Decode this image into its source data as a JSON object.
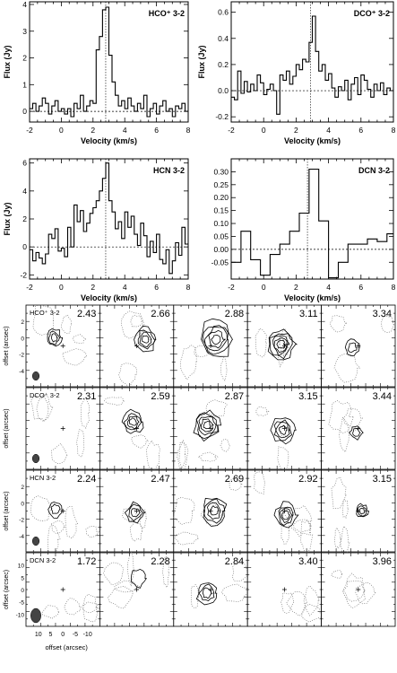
{
  "chart_data": {
    "spectra": [
      {
        "type": "line",
        "title": "HCO⁺ 3-2",
        "xlabel": "Velocity (km/s)",
        "ylabel": "Flux (Jy)",
        "xlim": [
          -2,
          8
        ],
        "ylim": [
          -0.4,
          4.1
        ],
        "xticks": [
          -2,
          0,
          2,
          4,
          6,
          8
        ],
        "yticks": [
          0,
          1,
          2,
          3,
          4
        ],
        "ytick_labels": [
          "0",
          "1",
          "2",
          "3",
          "4"
        ],
        "center_velocity": 2.8,
        "x": [
          -2.0,
          -1.8,
          -1.6,
          -1.4,
          -1.2,
          -1.0,
          -0.8,
          -0.6,
          -0.4,
          -0.2,
          0.0,
          0.2,
          0.4,
          0.6,
          0.8,
          1.0,
          1.2,
          1.4,
          1.6,
          1.8,
          2.0,
          2.2,
          2.4,
          2.6,
          2.8,
          3.0,
          3.2,
          3.4,
          3.6,
          3.8,
          4.0,
          4.2,
          4.4,
          4.6,
          4.8,
          5.0,
          5.2,
          5.4,
          5.6,
          5.8,
          6.0,
          6.2,
          6.4,
          6.6,
          6.8,
          7.0,
          7.2,
          7.4,
          7.6,
          7.8
        ],
        "y": [
          0.1,
          0.3,
          0.0,
          0.2,
          0.5,
          0.3,
          -0.1,
          0.2,
          0.4,
          0.0,
          0.1,
          -0.1,
          0.1,
          -0.2,
          0.3,
          0.1,
          0.6,
          0.0,
          0.2,
          0.4,
          0.3,
          2.3,
          2.8,
          3.8,
          3.9,
          2.1,
          1.1,
          0.6,
          0.2,
          0.4,
          0.1,
          0.5,
          0.2,
          0.0,
          0.3,
          0.1,
          0.6,
          -0.2,
          0.1,
          0.3,
          -0.1,
          0.2,
          0.4,
          0.0,
          0.1,
          -0.2,
          0.2,
          0.1,
          0.3,
          0.0
        ]
      },
      {
        "type": "line",
        "title": "DCO⁺ 3-2",
        "xlabel": "Velocity (km/s)",
        "ylabel": "Flux (Jy)",
        "xlim": [
          -2,
          8
        ],
        "ylim": [
          -0.24,
          0.68
        ],
        "xticks": [
          -2,
          0,
          2,
          4,
          6,
          8
        ],
        "yticks": [
          -0.2,
          0.0,
          0.2,
          0.4,
          0.6
        ],
        "ytick_labels": [
          "-0.2",
          "0.0",
          "0.2",
          "0.4",
          "0.6"
        ],
        "center_velocity": 2.9,
        "x": [
          -2.0,
          -1.8,
          -1.6,
          -1.4,
          -1.2,
          -1.0,
          -0.8,
          -0.6,
          -0.4,
          -0.2,
          0.0,
          0.2,
          0.4,
          0.6,
          0.8,
          1.0,
          1.2,
          1.4,
          1.6,
          1.8,
          2.0,
          2.2,
          2.4,
          2.6,
          2.8,
          3.0,
          3.2,
          3.4,
          3.6,
          3.8,
          4.0,
          4.2,
          4.4,
          4.6,
          4.8,
          5.0,
          5.2,
          5.4,
          5.6,
          5.8,
          6.0,
          6.2,
          6.4,
          6.6,
          6.8,
          7.0,
          7.2,
          7.4,
          7.6,
          7.8
        ],
        "y": [
          -0.05,
          -0.07,
          0.15,
          -0.02,
          0.07,
          -0.01,
          0.05,
          0.0,
          0.12,
          0.06,
          -0.03,
          0.01,
          0.05,
          0.0,
          -0.18,
          0.12,
          0.08,
          0.15,
          0.05,
          0.11,
          0.2,
          0.16,
          0.24,
          0.22,
          0.37,
          0.57,
          0.3,
          0.15,
          0.2,
          0.08,
          0.13,
          0.02,
          -0.05,
          0.03,
          0.0,
          0.08,
          -0.07,
          0.05,
          0.1,
          -0.03,
          0.12,
          0.08,
          0.01,
          -0.05,
          0.05,
          0.0,
          0.06,
          -0.03,
          0.02,
          0.0
        ]
      },
      {
        "type": "line",
        "title": "HCN 3-2",
        "xlabel": "Velocity (km/s)",
        "ylabel": "Flux (Jy)",
        "xlim": [
          -2,
          8
        ],
        "ylim": [
          -2.3,
          6.3
        ],
        "xticks": [
          -2,
          0,
          2,
          4,
          6,
          8
        ],
        "yticks": [
          -2,
          0,
          2,
          4,
          6
        ],
        "ytick_labels": [
          "-2",
          "0",
          "2",
          "4",
          "6"
        ],
        "center_velocity": 2.8,
        "x": [
          -2.0,
          -1.8,
          -1.6,
          -1.4,
          -1.2,
          -1.0,
          -0.8,
          -0.6,
          -0.4,
          -0.2,
          0.0,
          0.2,
          0.4,
          0.6,
          0.8,
          1.0,
          1.2,
          1.4,
          1.6,
          1.8,
          2.0,
          2.2,
          2.4,
          2.6,
          2.8,
          3.0,
          3.2,
          3.4,
          3.6,
          3.8,
          4.0,
          4.2,
          4.4,
          4.6,
          4.8,
          5.0,
          5.2,
          5.4,
          5.6,
          5.8,
          6.0,
          6.2,
          6.4,
          6.6,
          6.8,
          7.0,
          7.2,
          7.4,
          7.6,
          7.8
        ],
        "y": [
          -0.2,
          -1.0,
          -0.4,
          -0.8,
          -1.2,
          -0.5,
          0.9,
          0.6,
          1.3,
          -0.3,
          -0.1,
          -0.7,
          1.4,
          0.0,
          3.0,
          1.8,
          2.6,
          1.1,
          1.7,
          2.4,
          2.8,
          3.3,
          4.0,
          4.9,
          6.0,
          3.3,
          2.5,
          1.3,
          1.8,
          0.6,
          2.5,
          1.4,
          2.2,
          0.9,
          0.1,
          1.7,
          0.8,
          -0.7,
          0.4,
          -0.4,
          0.9,
          -0.9,
          -1.2,
          -0.2,
          -1.9,
          -1.0,
          0.3,
          -0.6,
          1.4,
          0.2
        ]
      },
      {
        "type": "line",
        "title": "DCN 3-2",
        "xlabel": "Velocity (km/s)",
        "ylabel": "",
        "xlim": [
          -2,
          8
        ],
        "ylim": [
          -0.115,
          0.35
        ],
        "xticks": [
          -2,
          0,
          2,
          4,
          6,
          8
        ],
        "yticks": [
          -0.05,
          0.0,
          0.05,
          0.1,
          0.15,
          0.2,
          0.25,
          0.3
        ],
        "ytick_labels": [
          "-0.05",
          "0.00",
          "0.05",
          "0.10",
          "0.15",
          "0.20",
          "0.25",
          "0.30"
        ],
        "center_velocity": 2.7,
        "x": [
          -2.0,
          -1.4,
          -0.8,
          -0.2,
          0.4,
          1.0,
          1.6,
          2.2,
          2.8,
          3.4,
          4.0,
          4.6,
          5.2,
          5.8,
          6.4,
          7.0,
          7.6
        ],
        "y": [
          -0.05,
          0.07,
          -0.04,
          -0.1,
          -0.02,
          0.02,
          0.07,
          0.14,
          0.31,
          0.11,
          -0.11,
          -0.05,
          0.02,
          0.02,
          0.04,
          0.03,
          0.06
        ]
      }
    ],
    "channel_maps": {
      "xlabel": "offset (arcsec)",
      "ylabel": "offset (arcsec)",
      "rows": [
        {
          "label": "HCO⁺ 3-2",
          "velocities": [
            "2.43",
            "2.66",
            "2.88",
            "3.11",
            "3.34"
          ],
          "yticks": [
            "2",
            "0",
            "-2",
            "-4"
          ],
          "beam": {
            "w": 2,
            "h": 3
          }
        },
        {
          "label": "DCO⁺ 3-2",
          "velocities": [
            "2.31",
            "2.59",
            "2.87",
            "3.15",
            "3.44"
          ],
          "yticks": [],
          "beam": {
            "w": 2,
            "h": 3
          }
        },
        {
          "label": "HCN 3-2",
          "velocities": [
            "2.24",
            "2.47",
            "2.69",
            "2.92",
            "3.15"
          ],
          "yticks": [
            "2",
            "0",
            "-2",
            "-4"
          ],
          "beam": {
            "w": 2,
            "h": 3
          }
        },
        {
          "label": "DCN 3-2",
          "velocities": [
            "1.72",
            "2.28",
            "2.84",
            "3.40",
            "3.96"
          ],
          "yticks": [
            "10",
            "5",
            "0",
            "-5",
            "-10"
          ],
          "beam": {
            "w": 3,
            "h": 5
          }
        }
      ],
      "xticks": [
        "10",
        "5",
        "0",
        "-5",
        "-10"
      ]
    }
  }
}
